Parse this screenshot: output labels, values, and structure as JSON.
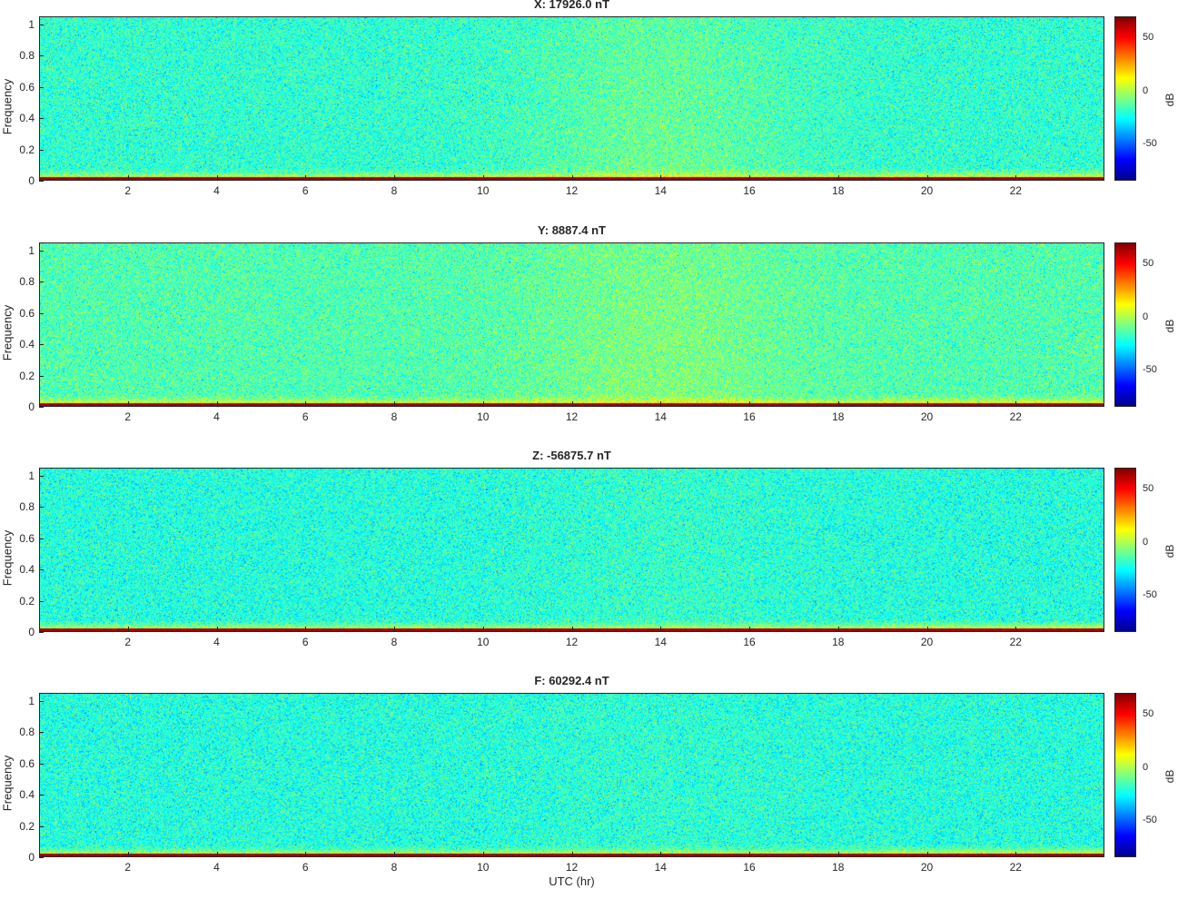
{
  "chart_data": [
    {
      "type": "heatmap",
      "title": "X: 17926.0 nT",
      "ylabel": "Frequency",
      "xlabel": "",
      "xlim": [
        0,
        24
      ],
      "ylim": [
        0,
        1.05
      ],
      "x_ticks": [
        2,
        4,
        6,
        8,
        10,
        12,
        14,
        16,
        18,
        20,
        22
      ],
      "y_ticks": [
        0,
        0.2,
        0.4,
        0.6,
        0.8,
        1
      ],
      "colorbar": {
        "label": "dB",
        "range": [
          -85,
          70
        ],
        "ticks": [
          -50,
          0,
          50
        ]
      },
      "base_level_db": -20,
      "low_freq_band_db": 40,
      "daytime_enhancement_db": 10
    },
    {
      "type": "heatmap",
      "title": "Y: 8887.4 nT",
      "ylabel": "Frequency",
      "xlabel": "",
      "xlim": [
        0,
        24
      ],
      "ylim": [
        0,
        1.05
      ],
      "x_ticks": [
        2,
        4,
        6,
        8,
        10,
        12,
        14,
        16,
        18,
        20,
        22
      ],
      "y_ticks": [
        0,
        0.2,
        0.4,
        0.6,
        0.8,
        1
      ],
      "colorbar": {
        "label": "dB",
        "range": [
          -85,
          70
        ],
        "ticks": [
          -50,
          0,
          50
        ]
      },
      "base_level_db": -15,
      "low_freq_band_db": 40,
      "daytime_enhancement_db": 8
    },
    {
      "type": "heatmap",
      "title": "Z: -56875.7 nT",
      "ylabel": "Frequency",
      "xlabel": "",
      "xlim": [
        0,
        24
      ],
      "ylim": [
        0,
        1.05
      ],
      "x_ticks": [
        2,
        4,
        6,
        8,
        10,
        12,
        14,
        16,
        18,
        20,
        22
      ],
      "y_ticks": [
        0,
        0.2,
        0.4,
        0.6,
        0.8,
        1
      ],
      "colorbar": {
        "label": "dB",
        "range": [
          -85,
          70
        ],
        "ticks": [
          -50,
          0,
          50
        ]
      },
      "base_level_db": -22,
      "low_freq_band_db": 42,
      "daytime_enhancement_db": 3
    },
    {
      "type": "heatmap",
      "title": "F: 60292.4 nT",
      "ylabel": "Frequency",
      "xlabel": "UTC (hr)",
      "xlim": [
        0,
        24
      ],
      "ylim": [
        0,
        1.05
      ],
      "x_ticks": [
        2,
        4,
        6,
        8,
        10,
        12,
        14,
        16,
        18,
        20,
        22
      ],
      "y_ticks": [
        0,
        0.2,
        0.4,
        0.6,
        0.8,
        1
      ],
      "colorbar": {
        "label": "dB",
        "range": [
          -85,
          70
        ],
        "ticks": [
          -50,
          0,
          50
        ]
      },
      "base_level_db": -22,
      "low_freq_band_db": 42,
      "daytime_enhancement_db": 2
    }
  ],
  "colormap": [
    "#00008f",
    "#0000ff",
    "#007fff",
    "#00ffff",
    "#7fff7f",
    "#ffff00",
    "#ff7f00",
    "#ff0000",
    "#800000"
  ]
}
